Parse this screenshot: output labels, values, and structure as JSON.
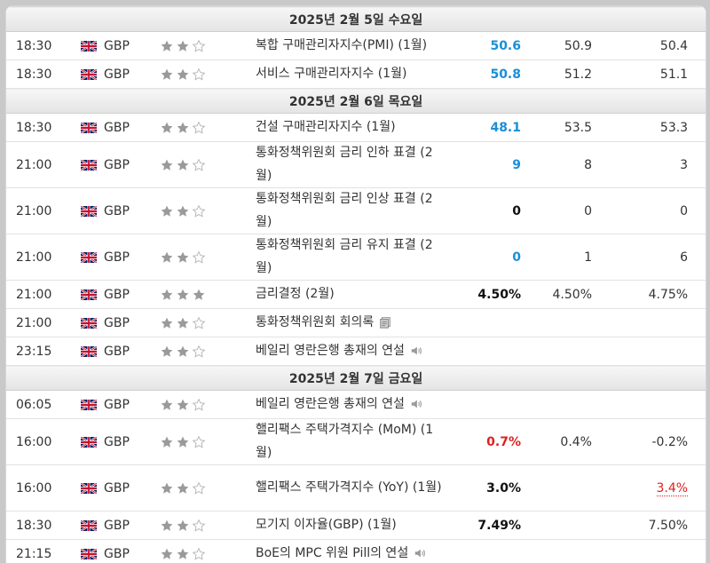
{
  "currency": "GBP",
  "rows": [
    {
      "type": "day",
      "label": "2025년 2월 5일 수요일"
    },
    {
      "type": "event",
      "time": "18:30",
      "stars": 2,
      "event": "복합 구매관리자지수(PMI) (1월)",
      "actual": "50.6",
      "actual_color": "up",
      "forecast": "50.9",
      "previous": "50.4"
    },
    {
      "type": "event",
      "time": "18:30",
      "stars": 2,
      "event": "서비스 구매관리자지수 (1월)",
      "actual": "50.8",
      "actual_color": "up",
      "forecast": "51.2",
      "previous": "51.1"
    },
    {
      "type": "day",
      "label": "2025년 2월 6일 목요일"
    },
    {
      "type": "event",
      "time": "18:30",
      "stars": 2,
      "event": "건설 구매관리자지수 (1월)",
      "actual": "48.1",
      "actual_color": "up",
      "forecast": "53.5",
      "previous": "53.3"
    },
    {
      "type": "event",
      "tall": true,
      "time": "21:00",
      "stars": 2,
      "event": "통화정책위원회 금리 인하 표결 (2월)",
      "actual": "9",
      "actual_color": "up",
      "forecast": "8",
      "previous": "3"
    },
    {
      "type": "event",
      "tall": true,
      "time": "21:00",
      "stars": 2,
      "event": "통화정책위원회 금리 인상 표결 (2월)",
      "actual": "0",
      "actual_color": "dark",
      "forecast": "0",
      "previous": "0"
    },
    {
      "type": "event",
      "tall": true,
      "time": "21:00",
      "stars": 2,
      "event": "통화정책위원회 금리 유지 표결 (2월)",
      "actual": "0",
      "actual_color": "up",
      "forecast": "1",
      "previous": "6"
    },
    {
      "type": "event",
      "time": "21:00",
      "stars": 3,
      "event": "금리결정 (2월)",
      "actual": "4.50%",
      "actual_color": "dark",
      "forecast": "4.50%",
      "previous": "4.75%"
    },
    {
      "type": "event",
      "time": "21:00",
      "stars": 2,
      "event": "통화정책위원회 회의록",
      "icon": "document-icon",
      "actual": "",
      "forecast": "",
      "previous": ""
    },
    {
      "type": "event",
      "time": "23:15",
      "stars": 2,
      "event": "베일리 영란은행 총재의 연설",
      "icon": "speaker-icon",
      "actual": "",
      "forecast": "",
      "previous": ""
    },
    {
      "type": "day",
      "label": "2025년 2월 7일 금요일"
    },
    {
      "type": "event",
      "time": "06:05",
      "stars": 2,
      "event": "베일리 영란은행 총재의 연설",
      "icon": "speaker-icon",
      "actual": "",
      "forecast": "",
      "previous": ""
    },
    {
      "type": "event",
      "tall": true,
      "time": "16:00",
      "stars": 2,
      "event": "핼리팩스 주택가격지수 (MoM) (1월)",
      "actual": "0.7%",
      "actual_color": "down",
      "forecast": "0.4%",
      "previous": "-0.2%"
    },
    {
      "type": "event",
      "tall": true,
      "time": "16:00",
      "stars": 2,
      "event": "핼리팩스 주택가격지수 (YoY) (1월)",
      "actual": "3.0%",
      "actual_color": "dark",
      "forecast": "",
      "previous": "3.4%",
      "previous_color": "red"
    },
    {
      "type": "event",
      "time": "18:30",
      "stars": 2,
      "event": "모기지 이자율(GBP) (1월)",
      "actual": "7.49%",
      "actual_color": "dark",
      "forecast": "",
      "previous": "7.50%"
    },
    {
      "type": "event",
      "time": "21:15",
      "stars": 2,
      "event": "BoE의 MPC 위원 Pill의 연설",
      "icon": "speaker-icon",
      "actual": "",
      "forecast": "",
      "previous": ""
    }
  ]
}
